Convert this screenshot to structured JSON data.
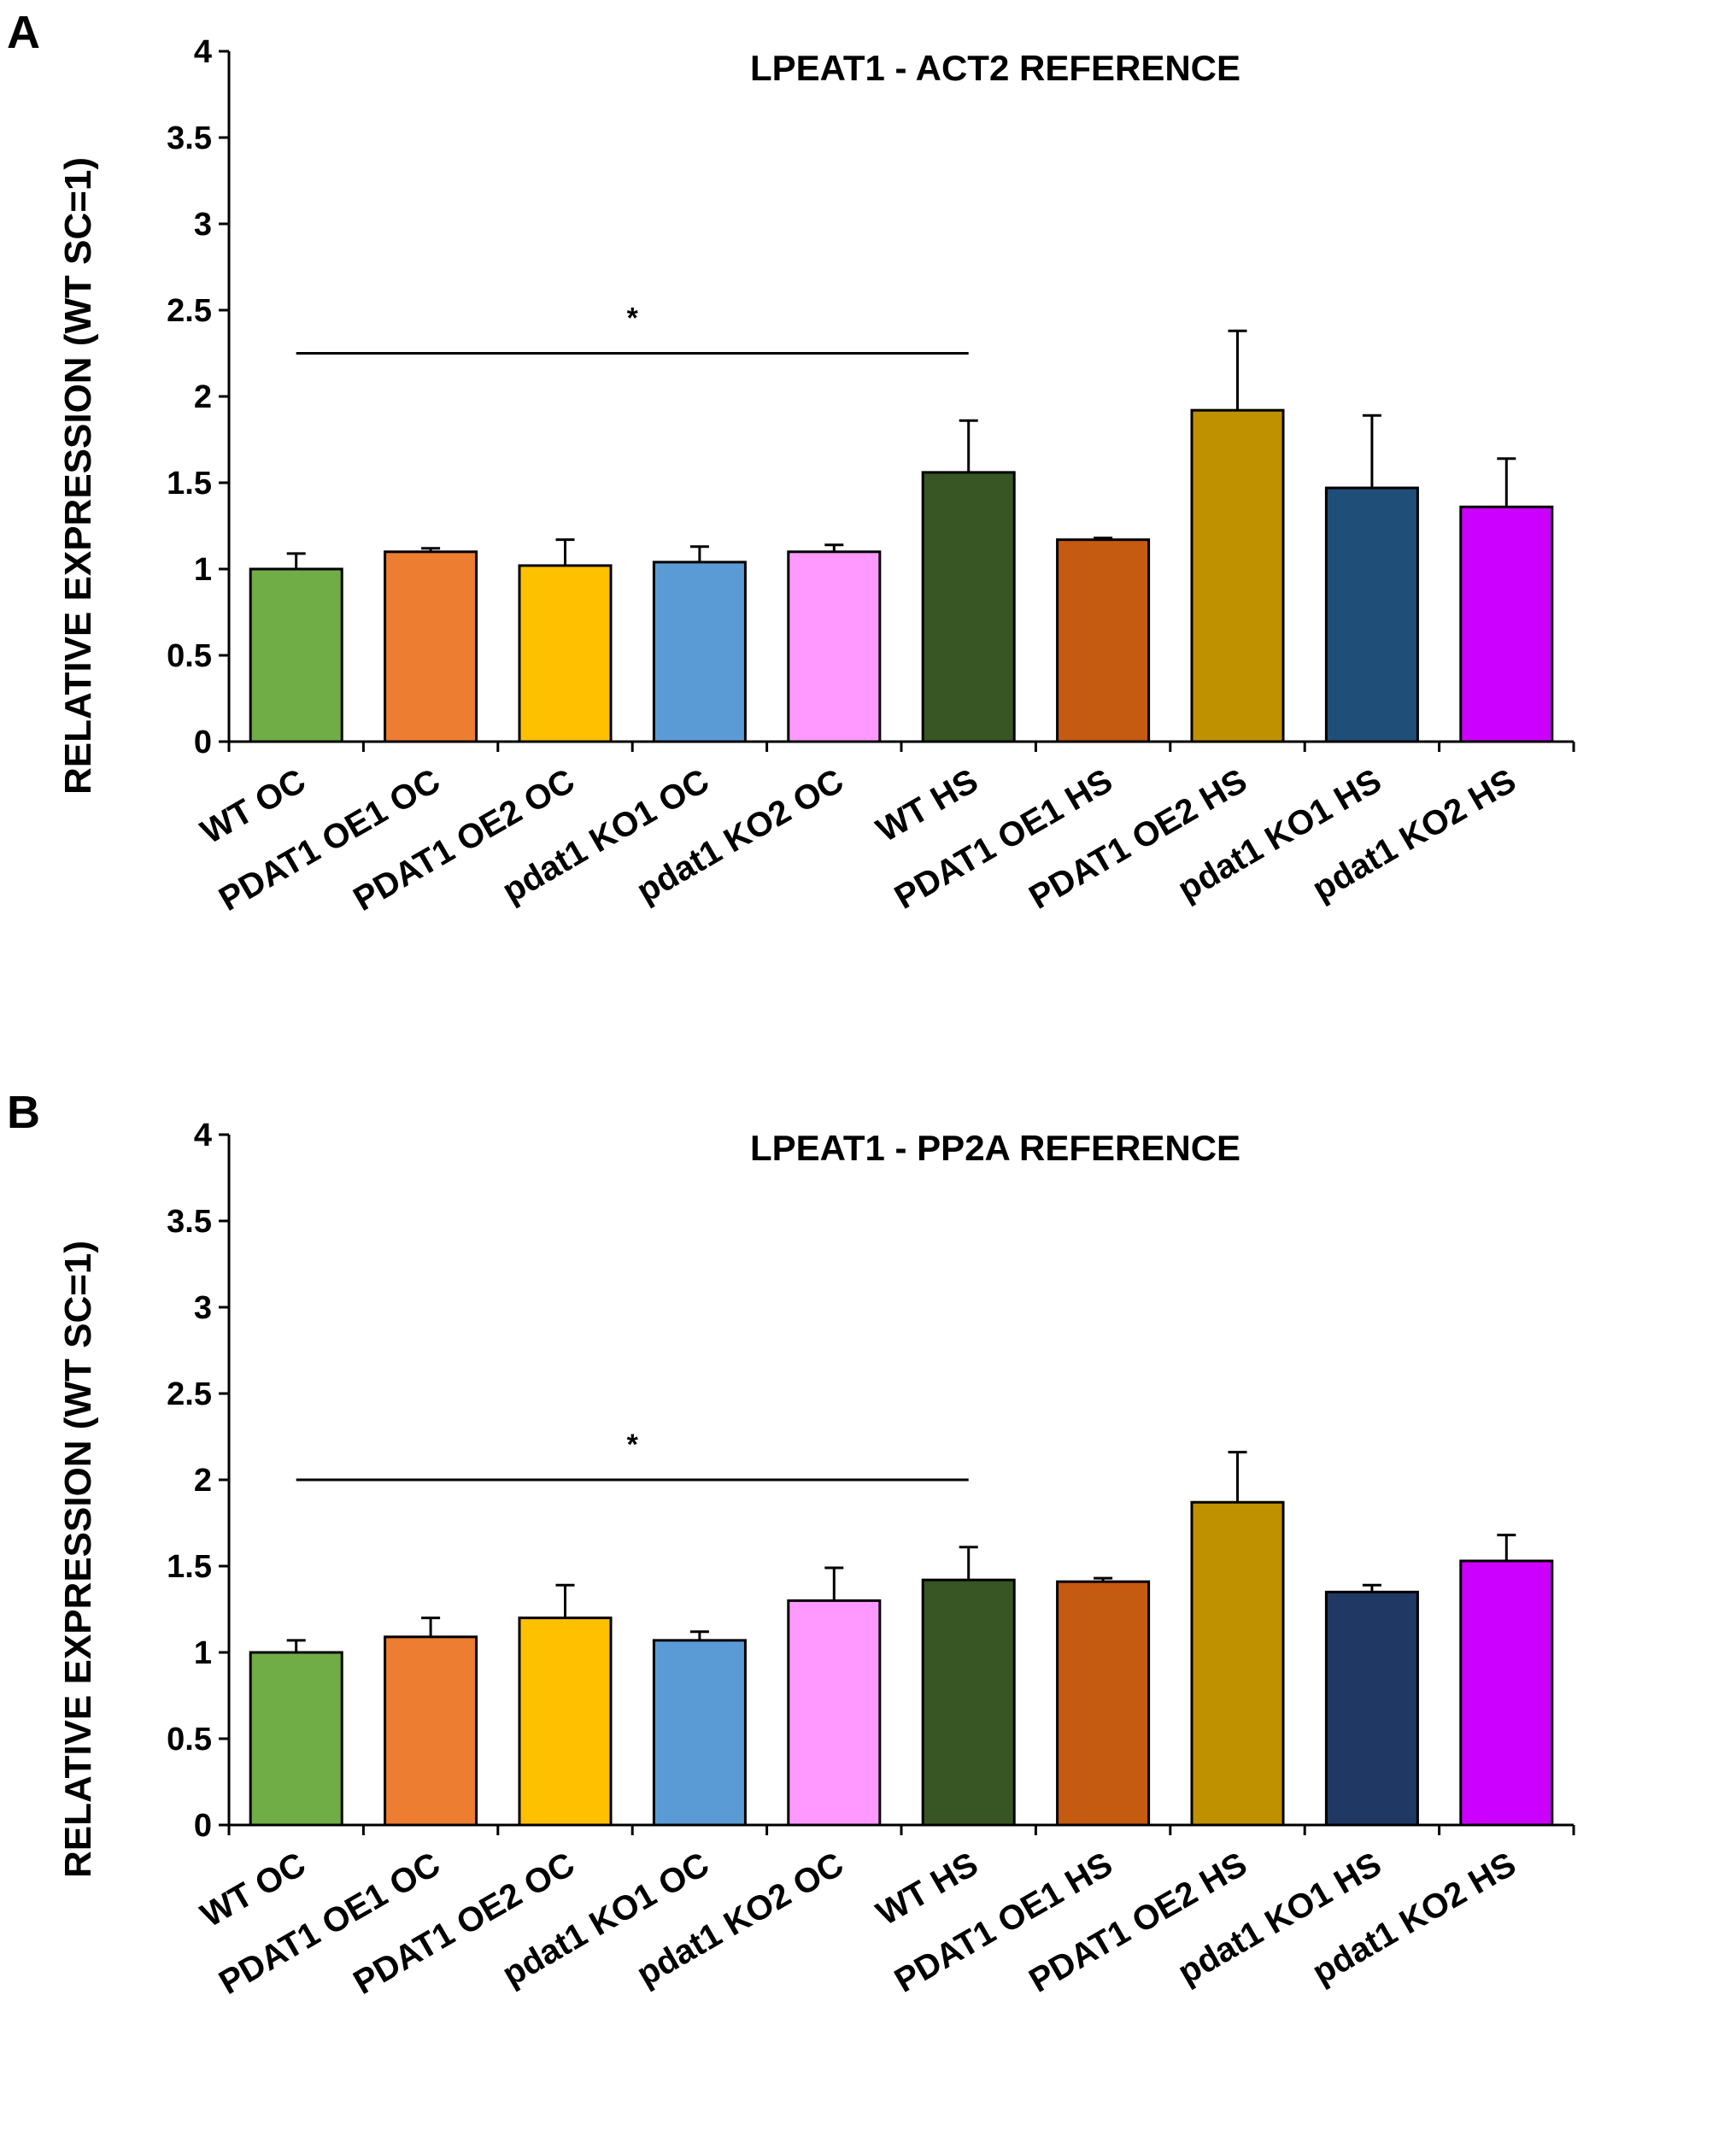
{
  "chart_data": [
    {
      "panel": "A",
      "type": "bar",
      "title": "LPEAT1 - ACT2 REFERENCE",
      "ylabel": "RELATIVE EXPRESSION (WT SC=1)",
      "xlabel": "",
      "ylim": [
        0,
        4
      ],
      "yticks": [
        "0",
        "0.5",
        "1",
        "1.5",
        "2",
        "2.5",
        "3",
        "3.5",
        "4"
      ],
      "categories": [
        "WT OC",
        "PDAT1 OE1 OC",
        "PDAT1 OE2 OC",
        "pdat1 KO1 OC",
        "pdat1 KO2 OC",
        "WT HS",
        "PDAT1 OE1 HS",
        "PDAT1 OE2 HS",
        "pdat1 KO1 HS",
        "pdat1 KO2 HS"
      ],
      "values": [
        1.0,
        1.1,
        1.02,
        1.04,
        1.1,
        1.56,
        1.17,
        1.92,
        1.47,
        1.36
      ],
      "errors": [
        0.09,
        0.02,
        0.15,
        0.09,
        0.04,
        0.3,
        0.01,
        0.46,
        0.42,
        0.28
      ],
      "colors": [
        "#70AD47",
        "#ED7D31",
        "#FFC000",
        "#5B9BD5",
        "#FF99FF",
        "#375623",
        "#C55A11",
        "#BF9000",
        "#1F4E79",
        "#CC00FF"
      ],
      "significance": {
        "label": "*",
        "from": "WT OC",
        "to": "WT HS",
        "y": 2.25
      },
      "grid": false
    },
    {
      "panel": "B",
      "type": "bar",
      "title": "LPEAT1 - PP2A REFERENCE",
      "ylabel": "RELATIVE EXPRESSION (WT SC=1)",
      "xlabel": "",
      "ylim": [
        0,
        4
      ],
      "yticks": [
        "0",
        "0.5",
        "1",
        "1.5",
        "2",
        "2.5",
        "3",
        "3.5",
        "4"
      ],
      "categories": [
        "WT OC",
        "PDAT1 OE1 OC",
        "PDAT1 OE2 OC",
        "pdat1 KO1 OC",
        "pdat1 KO2 OC",
        "WT HS",
        "PDAT1 OE1 HS",
        "PDAT1 OE2 HS",
        "pdat1 KO1 HS",
        "pdat1 KO2 HS"
      ],
      "values": [
        1.0,
        1.09,
        1.2,
        1.07,
        1.3,
        1.42,
        1.41,
        1.87,
        1.35,
        1.53
      ],
      "errors": [
        0.07,
        0.11,
        0.19,
        0.05,
        0.19,
        0.19,
        0.02,
        0.29,
        0.04,
        0.15
      ],
      "colors": [
        "#70AD47",
        "#ED7D31",
        "#FFC000",
        "#5B9BD5",
        "#FF99FF",
        "#375623",
        "#C55A11",
        "#BF9000",
        "#203864",
        "#CC00FF"
      ],
      "significance": {
        "label": "*",
        "from": "WT OC",
        "to": "WT HS",
        "y": 2.0
      },
      "grid": false
    }
  ]
}
